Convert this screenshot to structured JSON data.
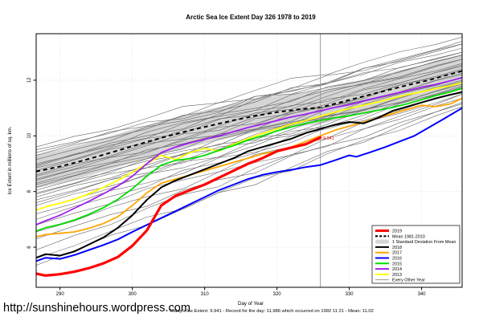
{
  "page": {
    "url_text": "http://sunshinehours.wordpress.com"
  },
  "chart_data": {
    "type": "line",
    "title": "Arctic Sea Ice Extent Day 326 1978 to 2019",
    "xlabel": "Day of Year",
    "ylabel": "Ice Extent in millions of sq. km.",
    "caption": "Today's Ice Extent: 9.941  - Record for the day: 11.986 which occurred on 1992 11 21  - Mean: 11.02",
    "x_ticks": [
      290,
      300,
      310,
      320,
      330,
      340
    ],
    "y_ticks": [
      6,
      8,
      10,
      12
    ],
    "x_range": [
      286.7,
      345.6
    ],
    "y_range": [
      4.56,
      13.67
    ],
    "grid": true,
    "marker_day": 326,
    "marker_label": "9.941",
    "today_value": 9.941,
    "record_value": 11.986,
    "record_date": "1992 11 21",
    "mean_value_today": 11.02,
    "band": {
      "label": "1 Standard Deviation From Mean",
      "halfwidth": 0.6,
      "color": "#d5d5d5"
    },
    "mean_series": {
      "label": "Mean 1981-2010",
      "color": "#000000",
      "dashed": true,
      "points": [
        [
          286.7,
          8.72
        ],
        [
          290,
          8.9
        ],
        [
          293,
          9.1
        ],
        [
          296,
          9.32
        ],
        [
          299,
          9.55
        ],
        [
          302,
          9.78
        ],
        [
          305,
          10.0
        ],
        [
          308,
          10.2
        ],
        [
          311,
          10.38
        ],
        [
          314,
          10.56
        ],
        [
          317,
          10.72
        ],
        [
          320,
          10.85
        ],
        [
          323,
          10.95
        ],
        [
          326,
          11.02
        ],
        [
          329,
          11.22
        ],
        [
          332,
          11.42
        ],
        [
          335,
          11.62
        ],
        [
          338,
          11.82
        ],
        [
          341,
          12.0
        ],
        [
          343,
          12.15
        ],
        [
          345.6,
          12.33
        ]
      ]
    },
    "series": [
      {
        "name": "2013",
        "color": "#ffff00",
        "width": 1.8,
        "points": [
          [
            286.7,
            7.33
          ],
          [
            288,
            7.45
          ],
          [
            290,
            7.58
          ],
          [
            292,
            7.72
          ],
          [
            294,
            7.92
          ],
          [
            296,
            8.15
          ],
          [
            298,
            8.4
          ],
          [
            300,
            8.7
          ],
          [
            302,
            9.0
          ],
          [
            304,
            9.3
          ],
          [
            306,
            9.15
          ],
          [
            308,
            9.4
          ],
          [
            310,
            9.55
          ],
          [
            312,
            9.45
          ],
          [
            314,
            9.7
          ],
          [
            316,
            9.9
          ],
          [
            318,
            10.08
          ],
          [
            320,
            10.25
          ],
          [
            322,
            10.42
          ],
          [
            324,
            10.55
          ],
          [
            326,
            10.7
          ],
          [
            328,
            10.85
          ],
          [
            330,
            10.98
          ],
          [
            332,
            11.1
          ],
          [
            334,
            11.22
          ],
          [
            336,
            11.35
          ],
          [
            338,
            11.48
          ],
          [
            340,
            11.58
          ],
          [
            342,
            11.7
          ],
          [
            344,
            11.8
          ],
          [
            345.6,
            11.91
          ]
        ]
      },
      {
        "name": "2014",
        "color": "#a020f0",
        "width": 1.8,
        "points": [
          [
            286.7,
            6.81
          ],
          [
            288,
            6.95
          ],
          [
            290,
            7.15
          ],
          [
            292,
            7.4
          ],
          [
            294,
            7.65
          ],
          [
            296,
            7.92
          ],
          [
            298,
            8.2
          ],
          [
            300,
            8.55
          ],
          [
            302,
            9.0
          ],
          [
            304,
            9.4
          ],
          [
            306,
            9.6
          ],
          [
            308,
            9.75
          ],
          [
            310,
            9.88
          ],
          [
            312,
            10.0
          ],
          [
            314,
            10.15
          ],
          [
            316,
            10.3
          ],
          [
            318,
            10.42
          ],
          [
            320,
            10.55
          ],
          [
            322,
            10.68
          ],
          [
            324,
            10.78
          ],
          [
            326,
            10.9
          ],
          [
            328,
            11.02
          ],
          [
            330,
            11.12
          ],
          [
            332,
            11.25
          ],
          [
            334,
            11.38
          ],
          [
            336,
            11.5
          ],
          [
            338,
            11.62
          ],
          [
            340,
            11.75
          ],
          [
            342,
            11.85
          ],
          [
            344,
            11.98
          ],
          [
            345.6,
            12.09
          ]
        ]
      },
      {
        "name": "2015",
        "color": "#00dd00",
        "width": 1.8,
        "points": [
          [
            286.7,
            6.58
          ],
          [
            288,
            6.7
          ],
          [
            290,
            6.82
          ],
          [
            292,
            6.98
          ],
          [
            294,
            7.18
          ],
          [
            296,
            7.42
          ],
          [
            298,
            7.72
          ],
          [
            300,
            8.1
          ],
          [
            302,
            8.55
          ],
          [
            304,
            8.95
          ],
          [
            306,
            9.12
          ],
          [
            308,
            9.18
          ],
          [
            310,
            9.3
          ],
          [
            312,
            9.48
          ],
          [
            314,
            9.65
          ],
          [
            316,
            9.85
          ],
          [
            318,
            10.0
          ],
          [
            320,
            10.18
          ],
          [
            322,
            10.32
          ],
          [
            324,
            10.45
          ],
          [
            326,
            10.55
          ],
          [
            328,
            10.65
          ],
          [
            330,
            10.72
          ],
          [
            332,
            10.82
          ],
          [
            334,
            10.92
          ],
          [
            336,
            11.02
          ],
          [
            338,
            11.15
          ],
          [
            340,
            11.3
          ],
          [
            342,
            11.45
          ],
          [
            344,
            11.58
          ],
          [
            345.6,
            11.71
          ]
        ]
      },
      {
        "name": "2016",
        "color": "#0000ff",
        "width": 2,
        "points": [
          [
            286.7,
            5.5
          ],
          [
            288,
            5.62
          ],
          [
            290,
            5.58
          ],
          [
            292,
            5.72
          ],
          [
            294,
            5.9
          ],
          [
            296,
            6.08
          ],
          [
            298,
            6.28
          ],
          [
            300,
            6.55
          ],
          [
            302,
            6.8
          ],
          [
            304,
            7.05
          ],
          [
            306,
            7.3
          ],
          [
            308,
            7.55
          ],
          [
            310,
            7.8
          ],
          [
            312,
            8.05
          ],
          [
            314,
            8.25
          ],
          [
            316,
            8.45
          ],
          [
            318,
            8.6
          ],
          [
            320,
            8.7
          ],
          [
            322,
            8.78
          ],
          [
            324,
            8.88
          ],
          [
            326,
            8.95
          ],
          [
            328,
            9.12
          ],
          [
            330,
            9.3
          ],
          [
            331,
            9.25
          ],
          [
            333,
            9.42
          ],
          [
            335,
            9.6
          ],
          [
            337,
            9.8
          ],
          [
            339,
            10.0
          ],
          [
            341,
            10.3
          ],
          [
            343,
            10.6
          ],
          [
            345.6,
            11.0
          ]
        ]
      },
      {
        "name": "2017",
        "color": "#ffa500",
        "width": 1.8,
        "points": [
          [
            286.7,
            6.38
          ],
          [
            288,
            6.45
          ],
          [
            290,
            6.5
          ],
          [
            292,
            6.55
          ],
          [
            294,
            6.68
          ],
          [
            296,
            6.85
          ],
          [
            298,
            7.1
          ],
          [
            300,
            7.5
          ],
          [
            302,
            7.95
          ],
          [
            304,
            8.3
          ],
          [
            306,
            8.45
          ],
          [
            308,
            8.6
          ],
          [
            310,
            8.75
          ],
          [
            312,
            8.9
          ],
          [
            314,
            9.05
          ],
          [
            316,
            9.2
          ],
          [
            318,
            9.35
          ],
          [
            320,
            9.45
          ],
          [
            322,
            9.6
          ],
          [
            324,
            9.8
          ],
          [
            326,
            10.0
          ],
          [
            328,
            10.2
          ],
          [
            330,
            10.35
          ],
          [
            332,
            10.5
          ],
          [
            334,
            10.65
          ],
          [
            336,
            10.8
          ],
          [
            338,
            10.95
          ],
          [
            340,
            11.1
          ],
          [
            342,
            11.05
          ],
          [
            344,
            11.15
          ],
          [
            345.6,
            11.35
          ]
        ]
      },
      {
        "name": "2018",
        "color": "#000000",
        "width": 2,
        "points": [
          [
            286.7,
            5.62
          ],
          [
            288,
            5.75
          ],
          [
            290,
            5.7
          ],
          [
            292,
            5.85
          ],
          [
            294,
            6.1
          ],
          [
            296,
            6.35
          ],
          [
            298,
            6.7
          ],
          [
            300,
            7.15
          ],
          [
            302,
            7.7
          ],
          [
            304,
            8.15
          ],
          [
            306,
            8.4
          ],
          [
            308,
            8.6
          ],
          [
            310,
            8.8
          ],
          [
            312,
            9.0
          ],
          [
            314,
            9.2
          ],
          [
            316,
            9.45
          ],
          [
            318,
            9.6
          ],
          [
            320,
            9.75
          ],
          [
            322,
            9.9
          ],
          [
            324,
            10.1
          ],
          [
            326,
            10.25
          ],
          [
            328,
            10.4
          ],
          [
            330,
            10.5
          ],
          [
            332,
            10.45
          ],
          [
            334,
            10.65
          ],
          [
            336,
            10.9
          ],
          [
            338,
            11.05
          ],
          [
            340,
            11.2
          ],
          [
            342,
            11.35
          ],
          [
            344,
            11.48
          ],
          [
            345.6,
            11.57
          ]
        ]
      },
      {
        "name": "2019",
        "color": "#ff0000",
        "width": 3.2,
        "points": [
          [
            286.7,
            5.05
          ],
          [
            288,
            4.98
          ],
          [
            290,
            5.03
          ],
          [
            292,
            5.12
          ],
          [
            294,
            5.25
          ],
          [
            296,
            5.42
          ],
          [
            298,
            5.65
          ],
          [
            300,
            6.05
          ],
          [
            302,
            6.6
          ],
          [
            304,
            7.5
          ],
          [
            306,
            7.85
          ],
          [
            308,
            8.05
          ],
          [
            310,
            8.25
          ],
          [
            312,
            8.5
          ],
          [
            314,
            8.75
          ],
          [
            316,
            9.0
          ],
          [
            318,
            9.2
          ],
          [
            320,
            9.45
          ],
          [
            322,
            9.58
          ],
          [
            324,
            9.7
          ],
          [
            326,
            9.941
          ]
        ]
      }
    ],
    "other_years": {
      "label": "Every Other Year",
      "color": "#666666",
      "width": 0.6,
      "start_end_values": [
        [
          9.6,
          13.55
        ],
        [
          9.5,
          13.0
        ],
        [
          9.4,
          13.3
        ],
        [
          9.3,
          13.15
        ],
        [
          9.15,
          13.3
        ],
        [
          9.0,
          12.9
        ],
        [
          8.95,
          13.0
        ],
        [
          8.9,
          13.4
        ],
        [
          8.85,
          12.75
        ],
        [
          8.75,
          12.9
        ],
        [
          8.6,
          12.6
        ],
        [
          8.55,
          12.75
        ],
        [
          8.45,
          12.5
        ],
        [
          8.4,
          12.35
        ],
        [
          8.3,
          12.55
        ],
        [
          8.25,
          12.2
        ],
        [
          8.15,
          12.4
        ],
        [
          8.05,
          12.1
        ],
        [
          7.95,
          12.25
        ],
        [
          7.9,
          11.95
        ],
        [
          7.8,
          12.1
        ],
        [
          7.7,
          11.85
        ],
        [
          7.6,
          12.0
        ],
        [
          7.5,
          11.75
        ],
        [
          7.35,
          11.9
        ],
        [
          7.2,
          11.6
        ],
        [
          7.0,
          11.8
        ],
        [
          6.8,
          11.5
        ],
        [
          6.55,
          11.35
        ],
        [
          6.3,
          11.15
        ],
        [
          5.9,
          11.5
        ],
        [
          5.6,
          11.05
        ],
        [
          5.35,
          11.2
        ]
      ]
    },
    "legend": [
      {
        "label": "2019",
        "color": "#ff0000",
        "style": "solid",
        "width": 3
      },
      {
        "label": "Mean 1981-2010",
        "color": "#000000",
        "style": "dashed",
        "width": 2.2
      },
      {
        "label": "1 Standard Deviation From Mean",
        "color": "#d5d5d5",
        "style": "band",
        "width": 5
      },
      {
        "label": "2018",
        "color": "#000000",
        "style": "solid",
        "width": 2
      },
      {
        "label": "2017",
        "color": "#ffa500",
        "style": "solid",
        "width": 2
      },
      {
        "label": "2016",
        "color": "#0000ff",
        "style": "solid",
        "width": 2
      },
      {
        "label": "2015",
        "color": "#00dd00",
        "style": "solid",
        "width": 2
      },
      {
        "label": "2014",
        "color": "#a020f0",
        "style": "solid",
        "width": 2
      },
      {
        "label": "2013",
        "color": "#ffff00",
        "style": "solid",
        "width": 2
      },
      {
        "label": "Every Other Year",
        "color": "#888888",
        "style": "thin",
        "width": 0.8
      }
    ]
  }
}
